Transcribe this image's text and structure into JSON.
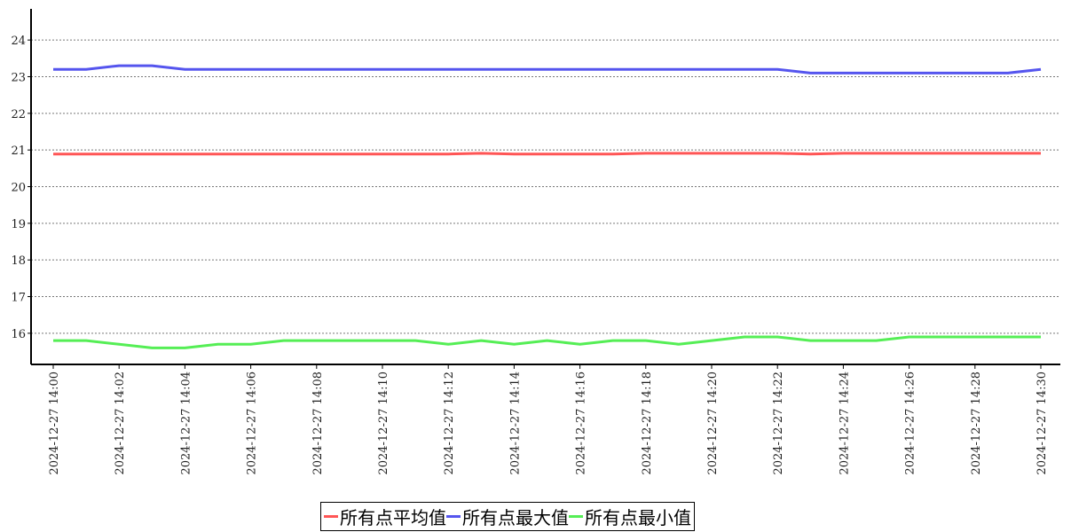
{
  "chart_data": {
    "type": "line",
    "title": "",
    "xlabel": "",
    "ylabel": "",
    "ylim": [
      15.15,
      24.85
    ],
    "yticks": [
      16,
      17,
      18,
      19,
      20,
      21,
      22,
      23,
      24
    ],
    "grid": "horizontal dotted",
    "legend_position": "bottom",
    "x": [
      "2024-12-27 14:00",
      "2024-12-27 14:01",
      "2024-12-27 14:02",
      "2024-12-27 14:03",
      "2024-12-27 14:04",
      "2024-12-27 14:05",
      "2024-12-27 14:06",
      "2024-12-27 14:07",
      "2024-12-27 14:08",
      "2024-12-27 14:09",
      "2024-12-27 14:10",
      "2024-12-27 14:11",
      "2024-12-27 14:12",
      "2024-12-27 14:13",
      "2024-12-27 14:14",
      "2024-12-27 14:15",
      "2024-12-27 14:16",
      "2024-12-27 14:17",
      "2024-12-27 14:18",
      "2024-12-27 14:19",
      "2024-12-27 14:20",
      "2024-12-27 14:21",
      "2024-12-27 14:22",
      "2024-12-27 14:23",
      "2024-12-27 14:24",
      "2024-12-27 14:25",
      "2024-12-27 14:26",
      "2024-12-27 14:27",
      "2024-12-27 14:28",
      "2024-12-27 14:29",
      "2024-12-27 14:30"
    ],
    "xtick_labels": [
      "2024-12-27 14:00",
      "2024-12-27 14:02",
      "2024-12-27 14:04",
      "2024-12-27 14:06",
      "2024-12-27 14:08",
      "2024-12-27 14:10",
      "2024-12-27 14:12",
      "2024-12-27 14:14",
      "2024-12-27 14:16",
      "2024-12-27 14:18",
      "2024-12-27 14:20",
      "2024-12-27 14:22",
      "2024-12-27 14:24",
      "2024-12-27 14:26",
      "2024-12-27 14:28",
      "2024-12-27 14:30"
    ],
    "series": [
      {
        "name": "所有点平均值",
        "color": "#ff5555",
        "values": [
          20.89,
          20.89,
          20.89,
          20.89,
          20.89,
          20.89,
          20.89,
          20.89,
          20.89,
          20.89,
          20.89,
          20.89,
          20.89,
          20.91,
          20.89,
          20.89,
          20.89,
          20.89,
          20.91,
          20.91,
          20.91,
          20.91,
          20.91,
          20.89,
          20.91,
          20.91,
          20.91,
          20.91,
          20.91,
          20.91,
          20.91
        ]
      },
      {
        "name": "所有点最大值",
        "color": "#5555ee",
        "values": [
          23.2,
          23.2,
          23.3,
          23.3,
          23.2,
          23.2,
          23.2,
          23.2,
          23.2,
          23.2,
          23.2,
          23.2,
          23.2,
          23.2,
          23.2,
          23.2,
          23.2,
          23.2,
          23.2,
          23.2,
          23.2,
          23.2,
          23.2,
          23.1,
          23.1,
          23.1,
          23.1,
          23.1,
          23.1,
          23.1,
          23.2
        ]
      },
      {
        "name": "所有点最小值",
        "color": "#55ee55",
        "values": [
          15.8,
          15.8,
          15.7,
          15.6,
          15.6,
          15.7,
          15.7,
          15.8,
          15.8,
          15.8,
          15.8,
          15.8,
          15.7,
          15.8,
          15.7,
          15.8,
          15.7,
          15.8,
          15.8,
          15.7,
          15.8,
          15.9,
          15.9,
          15.8,
          15.8,
          15.8,
          15.9,
          15.9,
          15.9,
          15.9,
          15.9
        ]
      }
    ]
  }
}
